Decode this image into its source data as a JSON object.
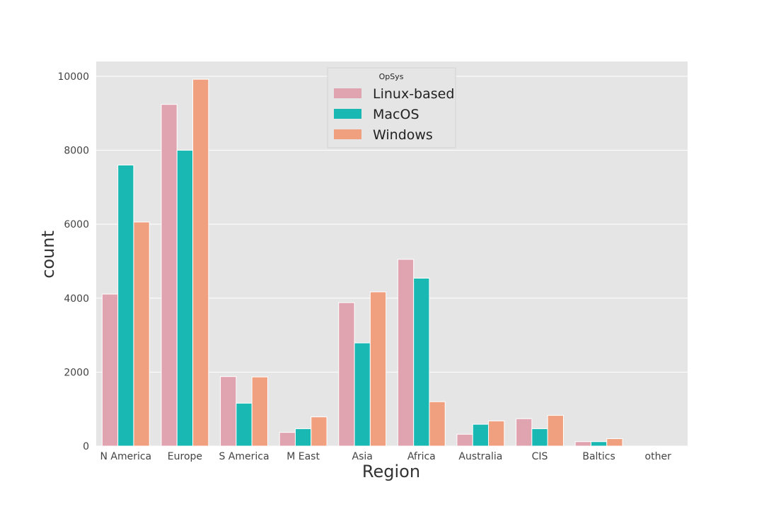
{
  "chart_data": {
    "type": "bar",
    "title": "",
    "xlabel": "Region",
    "ylabel": "count",
    "categories": [
      "N America",
      "Europe",
      "S America",
      "M East",
      "Asia",
      "Africa",
      "Australia",
      "CIS",
      "Baltics",
      "other"
    ],
    "series": [
      {
        "name": "Linux-based",
        "color": "#e0a3b0",
        "values": [
          4110,
          9240,
          1880,
          370,
          3880,
          5050,
          320,
          740,
          120,
          0
        ]
      },
      {
        "name": "MacOS",
        "color": "#1ab8b3",
        "values": [
          7600,
          8000,
          1160,
          470,
          2790,
          4540,
          590,
          470,
          120,
          0
        ]
      },
      {
        "name": "Windows",
        "color": "#f0a07f",
        "values": [
          6060,
          9920,
          1870,
          790,
          4170,
          1200,
          680,
          830,
          200,
          0
        ]
      }
    ],
    "ylim": [
      0,
      10400
    ],
    "yticks": [
      0,
      2000,
      4000,
      6000,
      8000,
      10000
    ],
    "grid": true,
    "legend": {
      "title": "OpSys",
      "placement": "top-center"
    }
  }
}
